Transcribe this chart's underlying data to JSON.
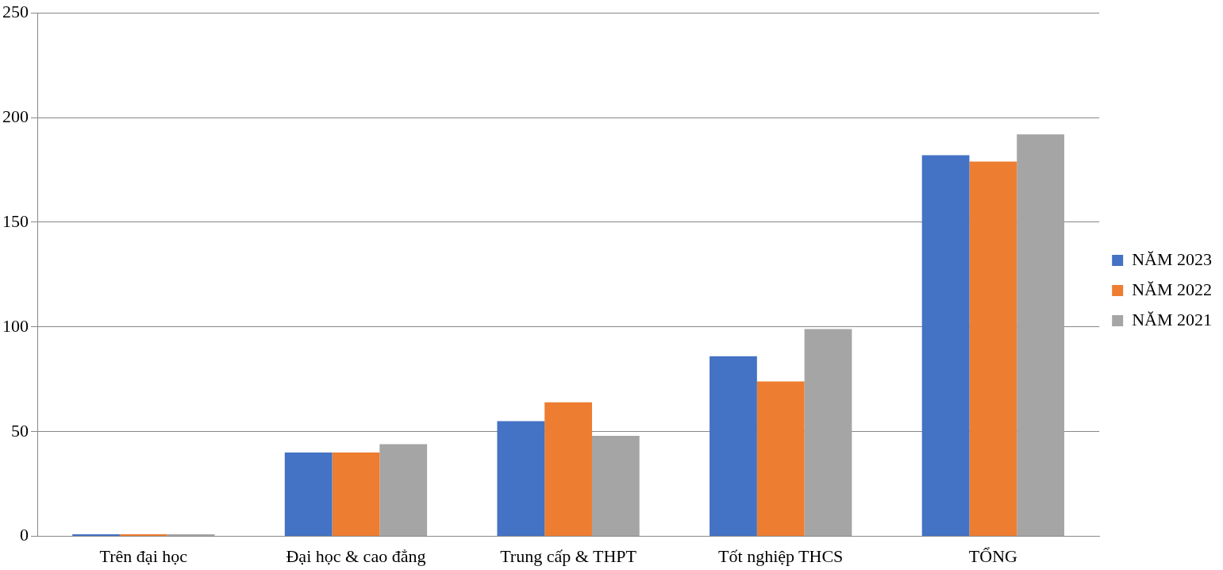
{
  "chart_data": {
    "type": "bar",
    "categories": [
      "Trên đại học",
      "Đại học & cao đẳng",
      "Trung cấp & THPT",
      "Tốt nghiệp THCS",
      "TỔNG"
    ],
    "series": [
      {
        "name": "NĂM 2023",
        "color": "#4472c4",
        "values": [
          1,
          40,
          55,
          86,
          182
        ]
      },
      {
        "name": "NĂM 2022",
        "color": "#ed7d31",
        "values": [
          1,
          40,
          64,
          74,
          179
        ]
      },
      {
        "name": "NĂM 2021",
        "color": "#a5a5a5",
        "values": [
          1,
          44,
          48,
          99,
          192
        ]
      }
    ],
    "ylim": [
      0,
      250
    ],
    "yticks": [
      0,
      50,
      100,
      150,
      200,
      250
    ],
    "grid": "y",
    "legend": "right"
  }
}
